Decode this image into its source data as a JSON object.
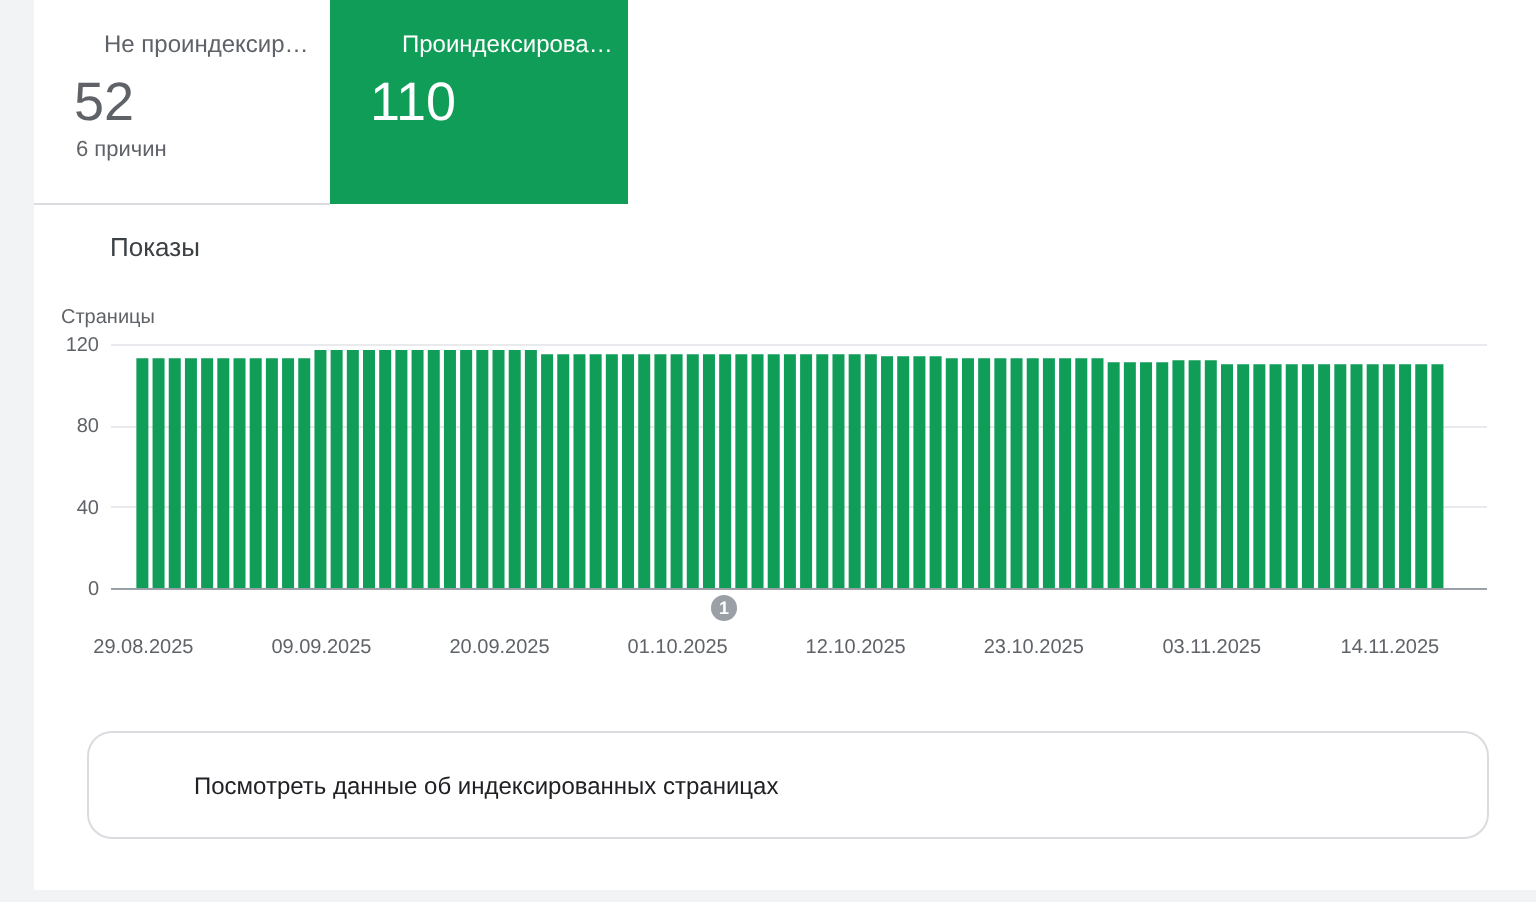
{
  "chart_data": {
    "type": "bar",
    "ylabel": "Страницы",
    "x": [
      "2025-08-29",
      "2025-08-30",
      "2025-08-31",
      "2025-09-01",
      "2025-09-02",
      "2025-09-03",
      "2025-09-04",
      "2025-09-05",
      "2025-09-06",
      "2025-09-07",
      "2025-09-08",
      "2025-09-09",
      "2025-09-10",
      "2025-09-11",
      "2025-09-12",
      "2025-09-13",
      "2025-09-14",
      "2025-09-15",
      "2025-09-16",
      "2025-09-17",
      "2025-09-18",
      "2025-09-19",
      "2025-09-20",
      "2025-09-21",
      "2025-09-22",
      "2025-09-23",
      "2025-09-24",
      "2025-09-25",
      "2025-09-26",
      "2025-09-27",
      "2025-09-28",
      "2025-09-29",
      "2025-09-30",
      "2025-10-01",
      "2025-10-02",
      "2025-10-03",
      "2025-10-04",
      "2025-10-05",
      "2025-10-06",
      "2025-10-07",
      "2025-10-08",
      "2025-10-09",
      "2025-10-10",
      "2025-10-11",
      "2025-10-12",
      "2025-10-13",
      "2025-10-14",
      "2025-10-15",
      "2025-10-16",
      "2025-10-17",
      "2025-10-18",
      "2025-10-19",
      "2025-10-20",
      "2025-10-21",
      "2025-10-22",
      "2025-10-23",
      "2025-10-24",
      "2025-10-25",
      "2025-10-26",
      "2025-10-27",
      "2025-10-28",
      "2025-10-29",
      "2025-10-30",
      "2025-10-31",
      "2025-11-01",
      "2025-11-02",
      "2025-11-03",
      "2025-11-04",
      "2025-11-05",
      "2025-11-06",
      "2025-11-07",
      "2025-11-08",
      "2025-11-09",
      "2025-11-10",
      "2025-11-11",
      "2025-11-12",
      "2025-11-13",
      "2025-11-14",
      "2025-11-15",
      "2025-11-16",
      "2025-11-17"
    ],
    "series": [
      {
        "color": "#0f9d58",
        "values": [
          113,
          113,
          113,
          113,
          113,
          113,
          113,
          113,
          113,
          113,
          113,
          117,
          117,
          117,
          117,
          117,
          117,
          117,
          117,
          117,
          117,
          117,
          117,
          117,
          117,
          115,
          115,
          115,
          115,
          115,
          115,
          115,
          115,
          115,
          115,
          115,
          115,
          115,
          115,
          115,
          115,
          115,
          115,
          115,
          115,
          115,
          114,
          114,
          114,
          114,
          113,
          113,
          113,
          113,
          113,
          113,
          113,
          113,
          113,
          113,
          111,
          111,
          111,
          111,
          112,
          112,
          112,
          110,
          110,
          110,
          110,
          110,
          110,
          110,
          110,
          110,
          110,
          110,
          110,
          110,
          110
        ]
      }
    ],
    "xlim": [
      "2025-08-27",
      "2025-11-20"
    ],
    "xticks": [
      {
        "value": "2025-08-29",
        "label": "29.08.2025"
      },
      {
        "value": "2025-09-09",
        "label": "09.09.2025"
      },
      {
        "value": "2025-09-20",
        "label": "20.09.2025"
      },
      {
        "value": "2025-10-01",
        "label": "01.10.2025"
      },
      {
        "value": "2025-10-12",
        "label": "12.10.2025"
      },
      {
        "value": "2025-10-23",
        "label": "23.10.2025"
      },
      {
        "value": "2025-11-03",
        "label": "03.11.2025"
      },
      {
        "value": "2025-11-14",
        "label": "14.11.2025"
      }
    ],
    "ylim": [
      0,
      120
    ],
    "yticks": [
      0,
      40,
      80,
      120
    ],
    "grid": "y",
    "annotations": [
      "Не проиндексир…",
      "52",
      "6 причин",
      "Проиндексирова…",
      "110",
      "Показы",
      "Посмотреть данные об индексированных страницах",
      "1"
    ]
  }
}
